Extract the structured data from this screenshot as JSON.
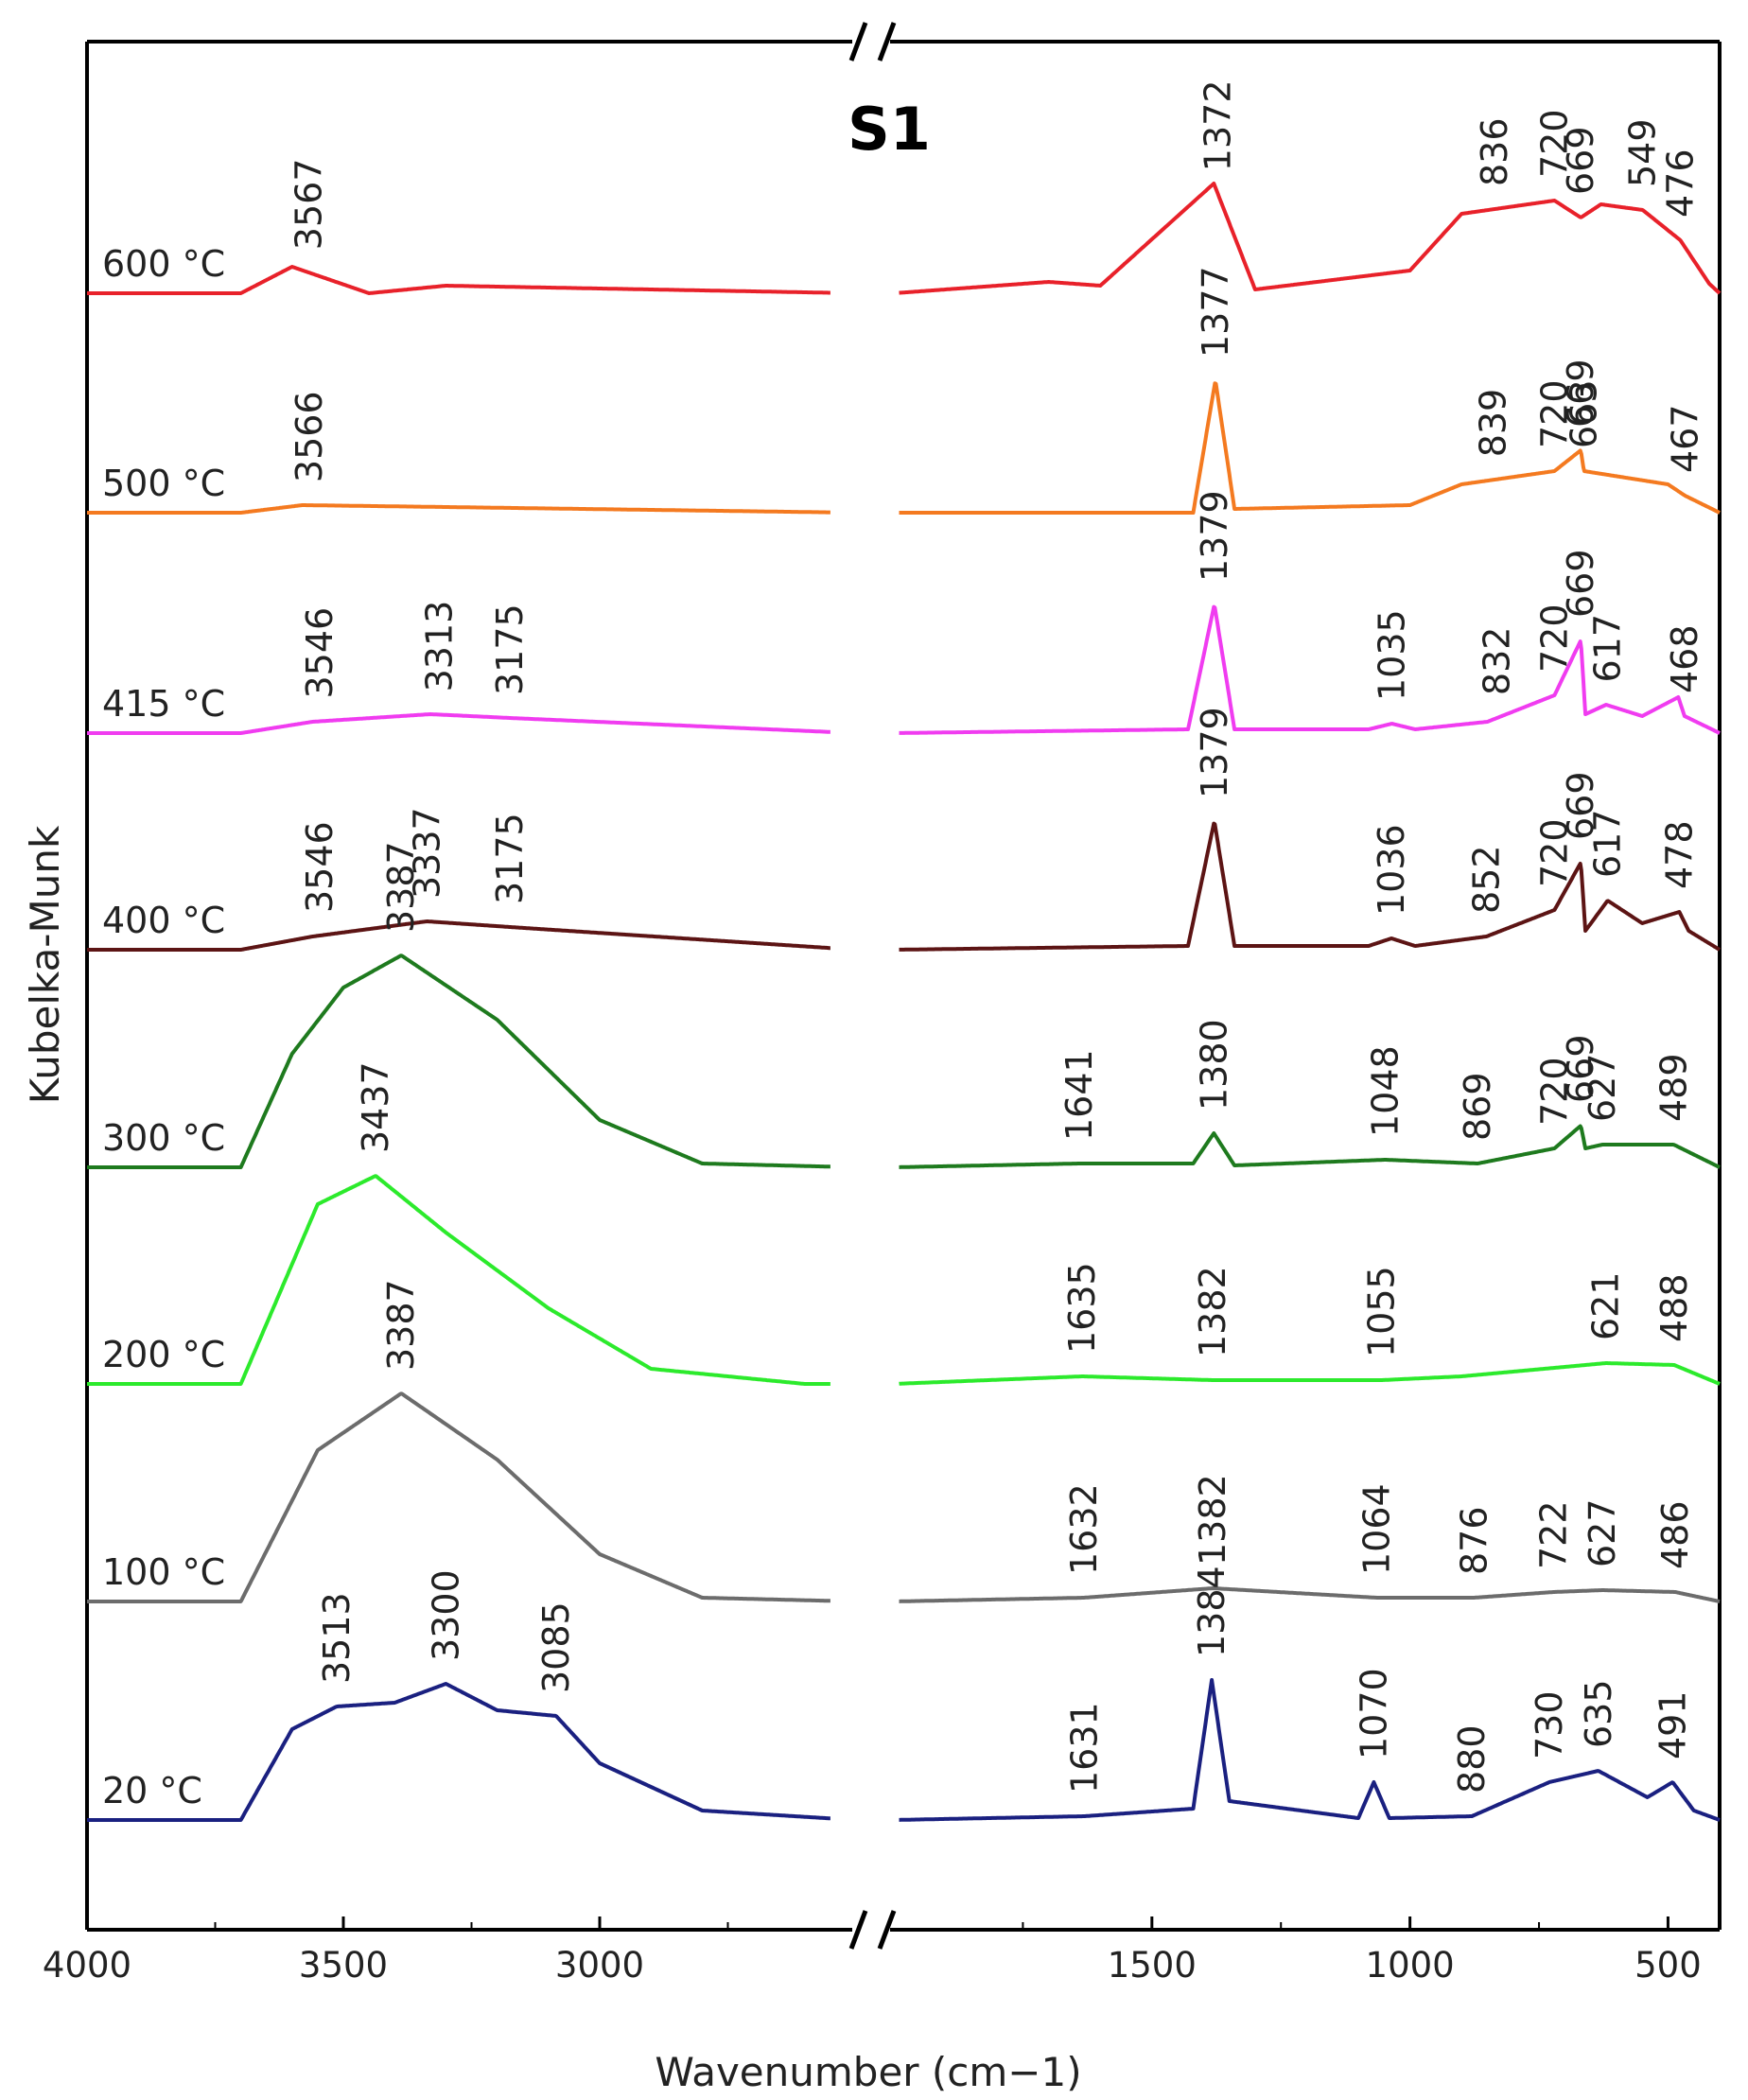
{
  "chart_data": {
    "type": "line",
    "title": "S1",
    "xlabel": "Wavenumber (cm−1)",
    "ylabel": "Kubelka-Munk",
    "x_axis": {
      "reversed": true,
      "broken": true,
      "left_segment": {
        "range": [
          4000,
          2500
        ],
        "ticks": [
          4000,
          3500,
          3000
        ]
      },
      "right_segment": {
        "range": [
          2000,
          400
        ],
        "ticks": [
          1500,
          1000,
          500
        ]
      },
      "tick_labels": [
        "4000",
        "3500",
        "3000",
        "1500",
        "1000",
        "500"
      ]
    },
    "series": [
      {
        "name": "600 °C",
        "label": "600 °C",
        "color": "#e8212a",
        "highPoints": [
          [
            3700,
            0
          ],
          [
            3600,
            0.14
          ],
          [
            3450,
            0
          ],
          [
            3300,
            0.04
          ],
          [
            2900,
            0.02
          ],
          [
            2500,
            0
          ],
          [
            2000,
            0
          ],
          [
            1700,
            0.06
          ],
          [
            1600,
            0.04
          ],
          [
            1380,
            0.58
          ],
          [
            1300,
            0.02
          ],
          [
            1000,
            0.12
          ],
          [
            900,
            0.42
          ],
          [
            720,
            0.49
          ],
          [
            669,
            0.4
          ],
          [
            630,
            0.47
          ],
          [
            549,
            0.44
          ],
          [
            476,
            0.28
          ],
          [
            420,
            0.05
          ],
          [
            400,
            0
          ]
        ],
        "peaks": [
          [
            "3567",
            3567
          ],
          [
            "1372",
            1372
          ],
          [
            "836",
            836
          ],
          [
            "720",
            720
          ],
          [
            "669",
            669
          ],
          [
            "549",
            549
          ],
          [
            "476",
            476
          ]
        ]
      },
      {
        "name": "500 °C",
        "label": "500 °C",
        "color": "#f47a20",
        "highPoints": [
          [
            3700,
            0
          ],
          [
            3580,
            0.04
          ],
          [
            3300,
            0.03
          ],
          [
            2500,
            0
          ],
          [
            2000,
            0
          ],
          [
            1420,
            0
          ],
          [
            1377,
            0.7
          ],
          [
            1340,
            0.02
          ],
          [
            1000,
            0.04
          ],
          [
            900,
            0.15
          ],
          [
            720,
            0.22
          ],
          [
            669,
            0.33
          ],
          [
            663,
            0.22
          ],
          [
            500,
            0.15
          ],
          [
            467,
            0.09
          ],
          [
            400,
            0
          ]
        ],
        "peaks": [
          [
            "3566",
            3566
          ],
          [
            "1377",
            1377
          ],
          [
            "839",
            839
          ],
          [
            "720",
            720
          ],
          [
            "669",
            669
          ],
          [
            "663",
            663
          ],
          [
            "467",
            467
          ]
        ]
      },
      {
        "name": "415 °C",
        "label": "415 °C",
        "color": "#f03cf0",
        "highPoints": [
          [
            3700,
            0
          ],
          [
            3560,
            0.06
          ],
          [
            3330,
            0.1
          ],
          [
            3175,
            0.08
          ],
          [
            2500,
            0
          ],
          [
            2000,
            0
          ],
          [
            1430,
            0.02
          ],
          [
            1379,
            0.68
          ],
          [
            1340,
            0.02
          ],
          [
            1080,
            0.02
          ],
          [
            1035,
            0.05
          ],
          [
            990,
            0.02
          ],
          [
            850,
            0.06
          ],
          [
            720,
            0.2
          ],
          [
            669,
            0.49
          ],
          [
            660,
            0.1
          ],
          [
            620,
            0.15
          ],
          [
            550,
            0.09
          ],
          [
            480,
            0.19
          ],
          [
            468,
            0.09
          ],
          [
            400,
            0
          ]
        ],
        "peaks": [
          [
            "3546",
            3546
          ],
          [
            "3313",
            3313
          ],
          [
            "3175",
            3175
          ],
          [
            "1379",
            1379
          ],
          [
            "1035",
            1035
          ],
          [
            "832",
            832
          ],
          [
            "720",
            720
          ],
          [
            "669",
            669
          ],
          [
            "617",
            617
          ],
          [
            "468",
            468
          ]
        ]
      },
      {
        "name": "400 °C",
        "label": "400 °C",
        "color": "#5c1414",
        "highPoints": [
          [
            3700,
            0
          ],
          [
            3560,
            0.07
          ],
          [
            3337,
            0.15
          ],
          [
            3175,
            0.12
          ],
          [
            2500,
            0
          ],
          [
            2000,
            0
          ],
          [
            1430,
            0.02
          ],
          [
            1379,
            0.68
          ],
          [
            1340,
            0.02
          ],
          [
            1080,
            0.02
          ],
          [
            1036,
            0.06
          ],
          [
            990,
            0.02
          ],
          [
            852,
            0.07
          ],
          [
            720,
            0.21
          ],
          [
            669,
            0.46
          ],
          [
            660,
            0.1
          ],
          [
            617,
            0.26
          ],
          [
            550,
            0.14
          ],
          [
            478,
            0.2
          ],
          [
            460,
            0.1
          ],
          [
            400,
            0
          ]
        ],
        "peaks": [
          [
            "3546",
            3546
          ],
          [
            "3337",
            3337
          ],
          [
            "3175",
            3175
          ],
          [
            "1379",
            1379
          ],
          [
            "1036",
            1036
          ],
          [
            "852",
            852
          ],
          [
            "720",
            720
          ],
          [
            "669",
            669
          ],
          [
            "617",
            617
          ],
          [
            "478",
            478
          ]
        ]
      },
      {
        "name": "300 °C",
        "label": "300 °C",
        "color": "#1e7a1e",
        "highPoints": [
          [
            3700,
            0
          ],
          [
            3600,
            0.6
          ],
          [
            3500,
            0.95
          ],
          [
            3387,
            1.12
          ],
          [
            3200,
            0.78
          ],
          [
            3000,
            0.25
          ],
          [
            2800,
            0.02
          ],
          [
            2500,
            0
          ],
          [
            2000,
            0
          ],
          [
            1641,
            0.02
          ],
          [
            1420,
            0.02
          ],
          [
            1380,
            0.18
          ],
          [
            1340,
            0.01
          ],
          [
            1048,
            0.04
          ],
          [
            869,
            0.02
          ],
          [
            720,
            0.1
          ],
          [
            669,
            0.22
          ],
          [
            660,
            0.1
          ],
          [
            627,
            0.12
          ],
          [
            489,
            0.12
          ],
          [
            400,
            0
          ]
        ],
        "peaks": [
          [
            "3387",
            3387
          ],
          [
            "1641",
            1641
          ],
          [
            "1380",
            1380
          ],
          [
            "1048",
            1048
          ],
          [
            "869",
            869
          ],
          [
            "720",
            720
          ],
          [
            "669",
            669
          ],
          [
            "627",
            627
          ],
          [
            "489",
            489
          ]
        ]
      },
      {
        "name": "200 °C",
        "label": "200 °C",
        "color": "#2cea2c",
        "highPoints": [
          [
            3700,
            0
          ],
          [
            3550,
            0.95
          ],
          [
            3437,
            1.1
          ],
          [
            3300,
            0.8
          ],
          [
            3100,
            0.4
          ],
          [
            2900,
            0.08
          ],
          [
            2600,
            0
          ],
          [
            2000,
            0
          ],
          [
            1635,
            0.04
          ],
          [
            1382,
            0.02
          ],
          [
            1055,
            0.02
          ],
          [
            900,
            0.04
          ],
          [
            621,
            0.11
          ],
          [
            488,
            0.1
          ],
          [
            400,
            0
          ]
        ],
        "peaks": [
          [
            "3437",
            3437
          ],
          [
            "1635",
            1635
          ],
          [
            "1382",
            1382
          ],
          [
            "1055",
            1055
          ],
          [
            "621",
            621
          ],
          [
            "488",
            488
          ]
        ]
      },
      {
        "name": "100 °C",
        "label": "100 °C",
        "color": "#6c6c6c",
        "highPoints": [
          [
            3700,
            0
          ],
          [
            3550,
            0.8
          ],
          [
            3387,
            1.1
          ],
          [
            3200,
            0.75
          ],
          [
            3000,
            0.25
          ],
          [
            2800,
            0.02
          ],
          [
            2500,
            0
          ],
          [
            2000,
            0
          ],
          [
            1632,
            0.02
          ],
          [
            1382,
            0.07
          ],
          [
            1064,
            0.02
          ],
          [
            876,
            0.02
          ],
          [
            722,
            0.05
          ],
          [
            627,
            0.06
          ],
          [
            486,
            0.05
          ],
          [
            400,
            0
          ]
        ],
        "peaks": [
          [
            "3387",
            3387
          ],
          [
            "1632",
            1632
          ],
          [
            "1382",
            1382
          ],
          [
            "1064",
            1064
          ],
          [
            "876",
            876
          ],
          [
            "722",
            722
          ],
          [
            "627",
            627
          ],
          [
            "486",
            486
          ]
        ]
      },
      {
        "name": "20 °C",
        "label": "20 °C",
        "color": "#1a2080",
        "highPoints": [
          [
            3700,
            0
          ],
          [
            3600,
            0.48
          ],
          [
            3513,
            0.6
          ],
          [
            3400,
            0.62
          ],
          [
            3300,
            0.72
          ],
          [
            3200,
            0.58
          ],
          [
            3085,
            0.55
          ],
          [
            3000,
            0.3
          ],
          [
            2800,
            0.05
          ],
          [
            2500,
            0
          ],
          [
            2000,
            0
          ],
          [
            1631,
            0.02
          ],
          [
            1420,
            0.06
          ],
          [
            1384,
            0.74
          ],
          [
            1350,
            0.1
          ],
          [
            1100,
            0.01
          ],
          [
            1070,
            0.2
          ],
          [
            1040,
            0.01
          ],
          [
            880,
            0.02
          ],
          [
            730,
            0.2
          ],
          [
            635,
            0.26
          ],
          [
            540,
            0.12
          ],
          [
            491,
            0.2
          ],
          [
            450,
            0.05
          ],
          [
            400,
            0
          ]
        ],
        "peaks": [
          [
            "3513",
            3513
          ],
          [
            "3300",
            3300
          ],
          [
            "3085",
            3085
          ],
          [
            "1631",
            1631
          ],
          [
            "1384",
            1384
          ],
          [
            "1070",
            1070
          ],
          [
            "880",
            880
          ],
          [
            "730",
            730
          ],
          [
            "635",
            635
          ],
          [
            "491",
            491
          ]
        ]
      }
    ]
  }
}
